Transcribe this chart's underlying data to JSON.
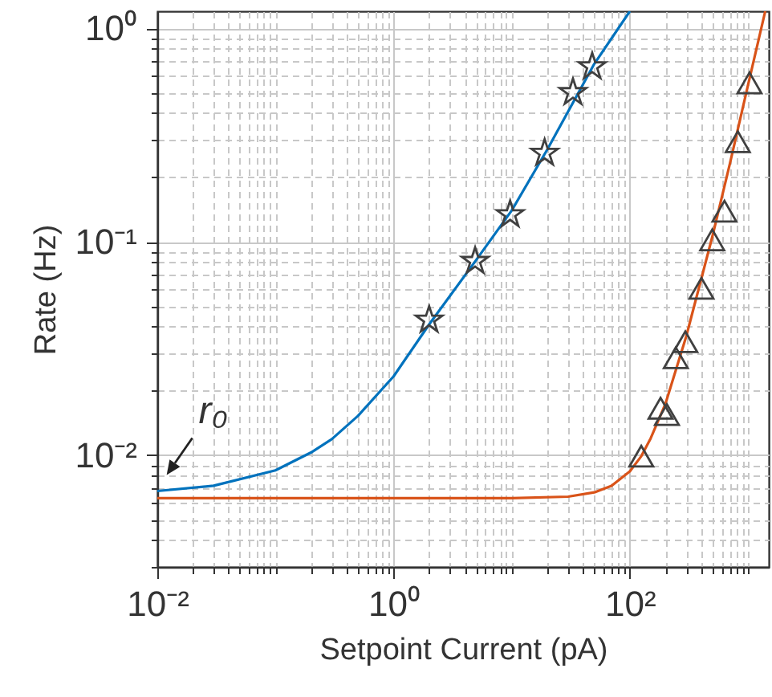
{
  "chart_data": {
    "type": "line",
    "xlabel": "Setpoint Current (pA)",
    "ylabel": "Rate (Hz)",
    "log": "xy",
    "grid": true,
    "xlim": [
      0.01,
      1500
    ],
    "ylim": [
      0.003,
      1.2
    ],
    "xticks": [
      {
        "value": 0.01,
        "label": "10⁻²"
      },
      {
        "value": 0.02,
        "label": null
      },
      {
        "value": 0.03,
        "label": null
      },
      {
        "value": 0.04,
        "label": null
      },
      {
        "value": 0.05,
        "label": null
      },
      {
        "value": 0.06,
        "label": null
      },
      {
        "value": 0.07,
        "label": null
      },
      {
        "value": 0.08,
        "label": null
      },
      {
        "value": 0.09,
        "label": null
      },
      {
        "value": 0.1,
        "label": null
      },
      {
        "value": 0.2,
        "label": null
      },
      {
        "value": 0.3,
        "label": null
      },
      {
        "value": 0.4,
        "label": null
      },
      {
        "value": 0.5,
        "label": null
      },
      {
        "value": 0.6,
        "label": null
      },
      {
        "value": 0.7,
        "label": null
      },
      {
        "value": 0.8,
        "label": null
      },
      {
        "value": 0.9,
        "label": null
      },
      {
        "value": 1,
        "label": "10⁰"
      },
      {
        "value": 2,
        "label": null
      },
      {
        "value": 3,
        "label": null
      },
      {
        "value": 4,
        "label": null
      },
      {
        "value": 5,
        "label": null
      },
      {
        "value": 6,
        "label": null
      },
      {
        "value": 7,
        "label": null
      },
      {
        "value": 8,
        "label": null
      },
      {
        "value": 9,
        "label": null
      },
      {
        "value": 10,
        "label": null
      },
      {
        "value": 20,
        "label": null
      },
      {
        "value": 30,
        "label": null
      },
      {
        "value": 40,
        "label": null
      },
      {
        "value": 50,
        "label": null
      },
      {
        "value": 60,
        "label": null
      },
      {
        "value": 70,
        "label": null
      },
      {
        "value": 80,
        "label": null
      },
      {
        "value": 90,
        "label": null
      },
      {
        "value": 100,
        "label": "10²"
      },
      {
        "value": 200,
        "label": null
      },
      {
        "value": 300,
        "label": null
      },
      {
        "value": 400,
        "label": null
      },
      {
        "value": 500,
        "label": null
      },
      {
        "value": 600,
        "label": null
      },
      {
        "value": 700,
        "label": null
      },
      {
        "value": 800,
        "label": null
      },
      {
        "value": 900,
        "label": null
      },
      {
        "value": 1000,
        "label": null
      }
    ],
    "yticks": [
      {
        "value": 0.003,
        "label": null
      },
      {
        "value": 0.004,
        "label": null
      },
      {
        "value": 0.005,
        "label": null
      },
      {
        "value": 0.006,
        "label": null
      },
      {
        "value": 0.007,
        "label": null
      },
      {
        "value": 0.008,
        "label": null
      },
      {
        "value": 0.009,
        "label": null
      },
      {
        "value": 0.01,
        "label": "10⁻²"
      },
      {
        "value": 0.02,
        "label": null
      },
      {
        "value": 0.03,
        "label": null
      },
      {
        "value": 0.04,
        "label": null
      },
      {
        "value": 0.05,
        "label": null
      },
      {
        "value": 0.06,
        "label": null
      },
      {
        "value": 0.07,
        "label": null
      },
      {
        "value": 0.08,
        "label": null
      },
      {
        "value": 0.09,
        "label": null
      },
      {
        "value": 0.1,
        "label": "10⁻¹"
      },
      {
        "value": 0.2,
        "label": null
      },
      {
        "value": 0.3,
        "label": null
      },
      {
        "value": 0.4,
        "label": null
      },
      {
        "value": 0.5,
        "label": null
      },
      {
        "value": 0.6,
        "label": null
      },
      {
        "value": 0.7,
        "label": null
      },
      {
        "value": 0.8,
        "label": null
      },
      {
        "value": 0.9,
        "label": null
      },
      {
        "value": 1,
        "label": "10⁰"
      }
    ],
    "annotations": [
      {
        "text": "r₀",
        "x": 0.012,
        "y": 0.0068
      }
    ],
    "series": [
      {
        "color": "#0072bd",
        "x": [
          0.01,
          0.03,
          0.1,
          0.2,
          0.3,
          0.5,
          1,
          2,
          5,
          10,
          20,
          50,
          100
        ],
        "values": [
          0.0068,
          0.0072,
          0.0085,
          0.0103,
          0.0119,
          0.0153,
          0.0234,
          0.041,
          0.082,
          0.14,
          0.27,
          0.68,
          1.2
        ]
      },
      {
        "type": "scatter",
        "marker": "star",
        "color": "#404040",
        "x": [
          2.0,
          4.9,
          9.7,
          19,
          33,
          48
        ],
        "values": [
          0.043,
          0.081,
          0.134,
          0.26,
          0.5,
          0.66
        ]
      },
      {
        "color": "#d95319",
        "x": [
          0.01,
          1,
          10,
          30,
          50,
          70,
          100,
          125,
          150,
          200,
          300,
          500,
          700,
          1000,
          1400
        ],
        "values": [
          0.0063,
          0.0063,
          0.0063,
          0.0064,
          0.0067,
          0.0072,
          0.0084,
          0.0099,
          0.012,
          0.0174,
          0.036,
          0.106,
          0.23,
          0.54,
          1.2
        ]
      },
      {
        "type": "scatter",
        "marker": "triangle",
        "color": "#404040",
        "x": [
          125,
          182,
          206,
          245,
          295,
          404,
          498,
          632,
          820,
          1030
        ],
        "values": [
          0.0099,
          0.0166,
          0.0155,
          0.0286,
          0.034,
          0.0605,
          0.102,
          0.139,
          0.294,
          0.554
        ]
      }
    ]
  }
}
